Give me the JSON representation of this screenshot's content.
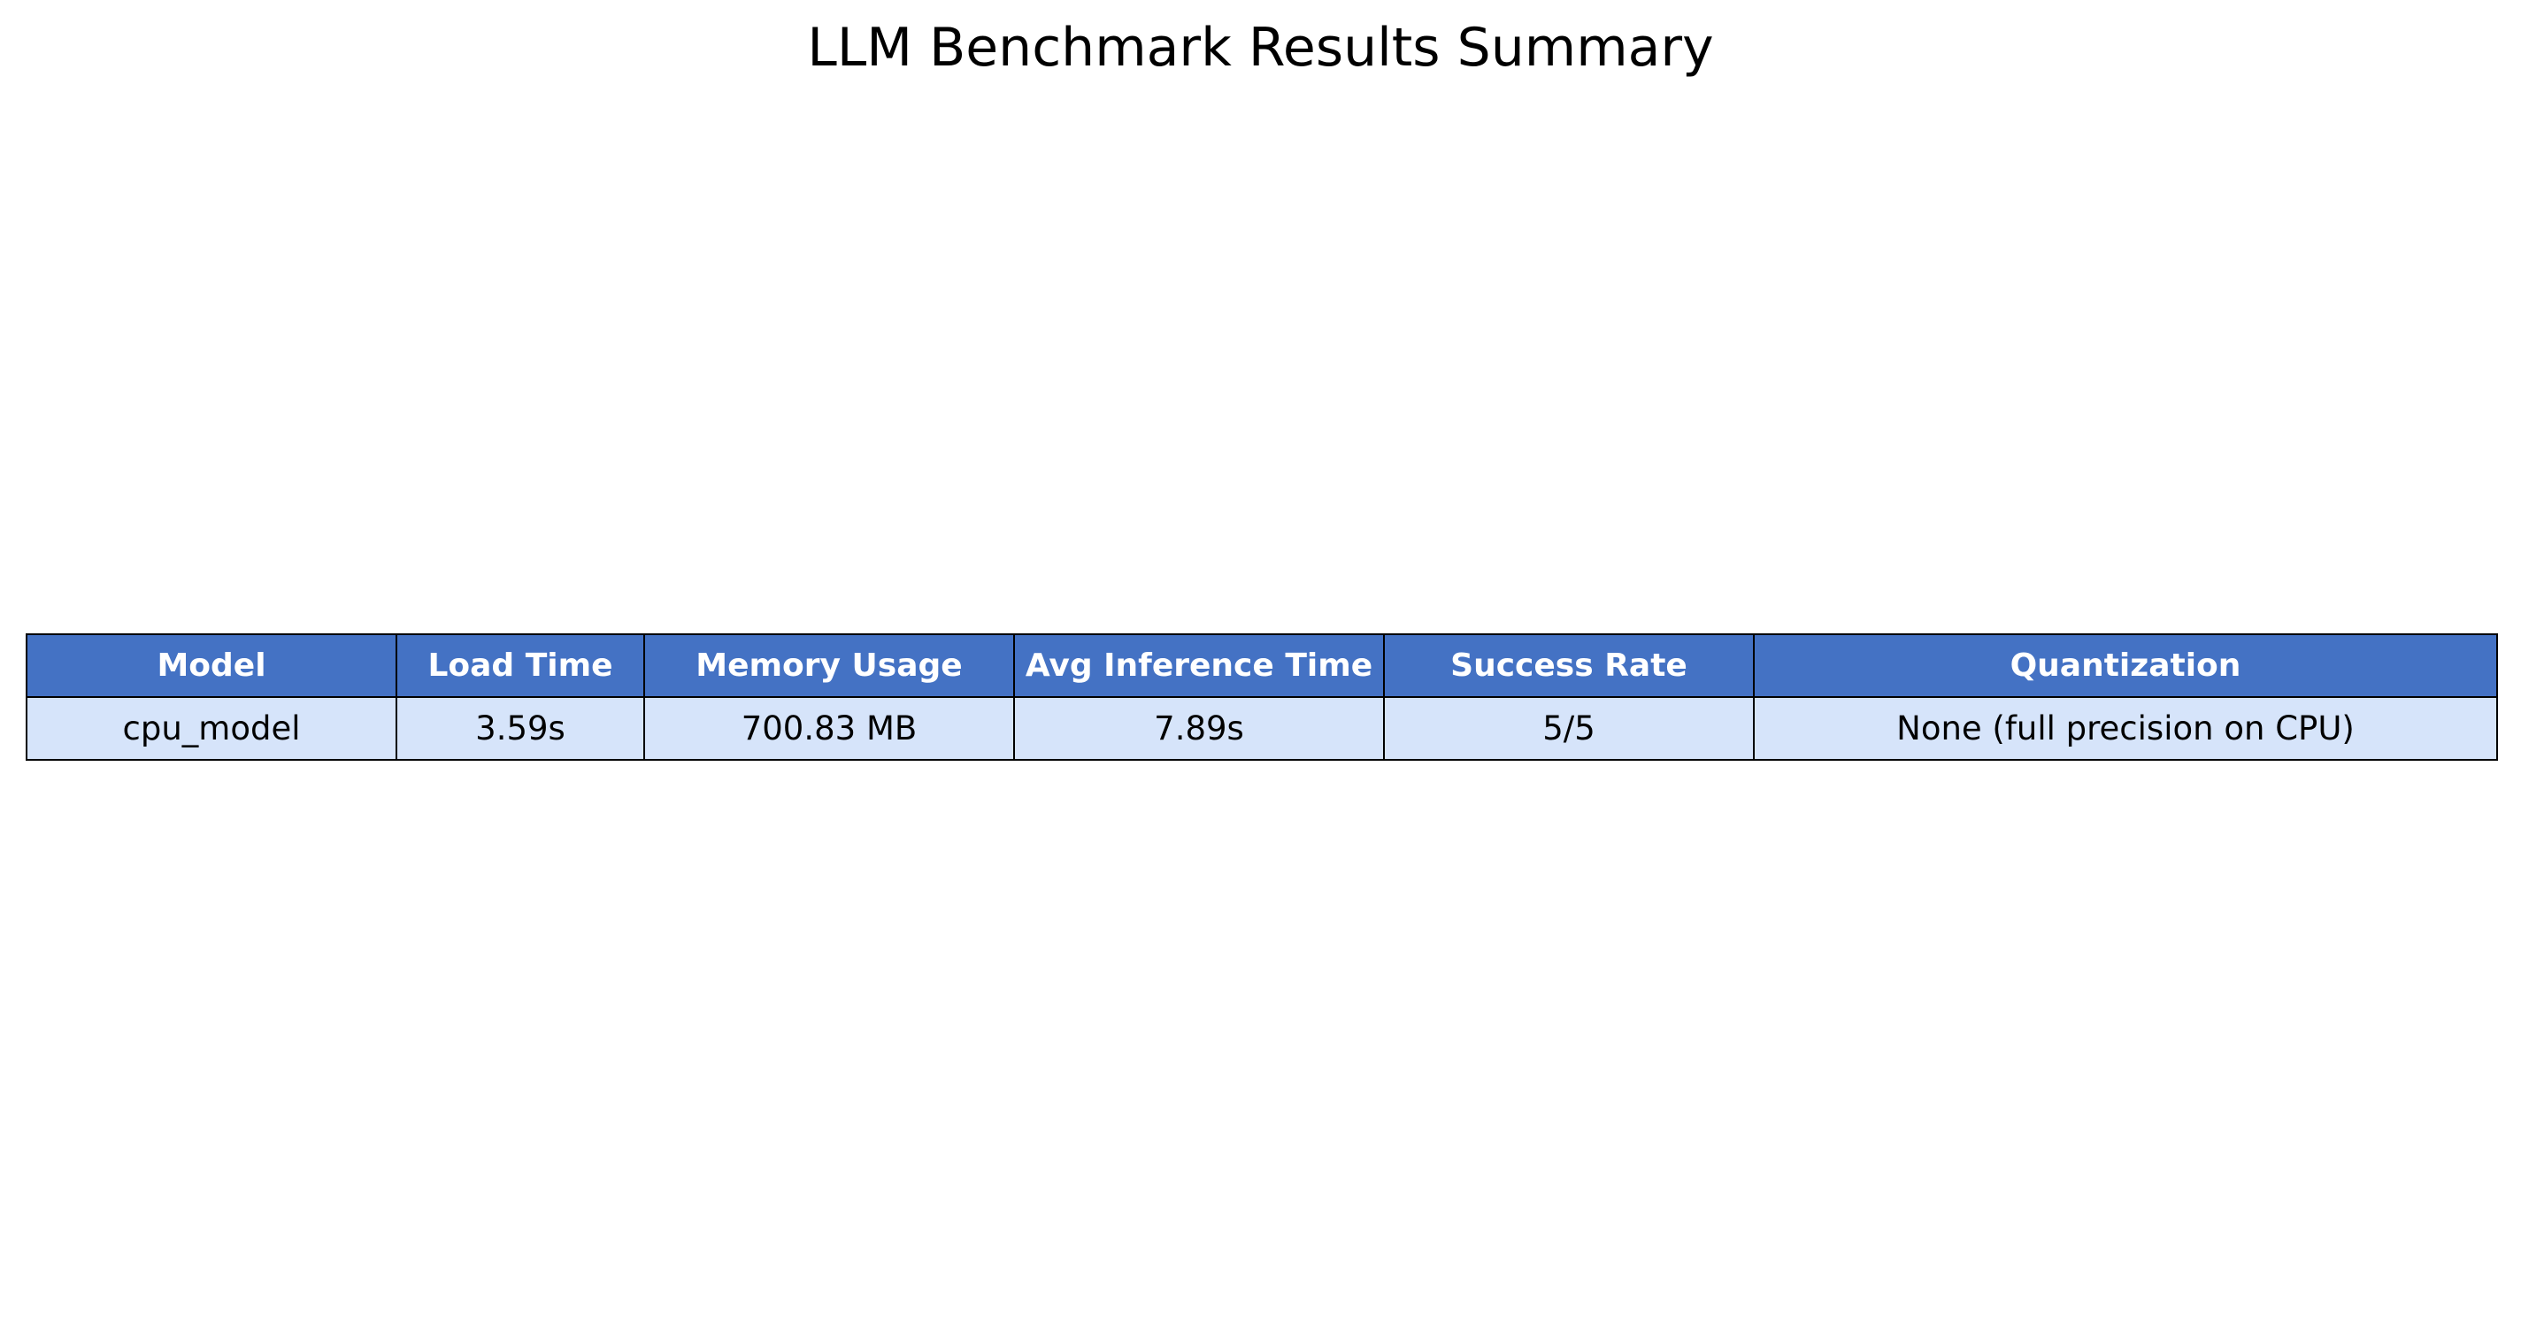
{
  "title": "LLM Benchmark Results Summary",
  "colors": {
    "header_background": "#4472c4",
    "header_text": "#ffffff",
    "cell_background": "#d6e4fa",
    "cell_text": "#000000",
    "border": "#000000"
  },
  "chart_data": {
    "type": "table",
    "title": "LLM Benchmark Results Summary",
    "columns": [
      "Model",
      "Load Time",
      "Memory Usage",
      "Avg Inference Time",
      "Success Rate",
      "Quantization"
    ],
    "rows": [
      [
        "cpu_model",
        "3.59s",
        "700.83 MB",
        "7.89s",
        "5/5",
        "None (full precision on CPU)"
      ]
    ]
  }
}
